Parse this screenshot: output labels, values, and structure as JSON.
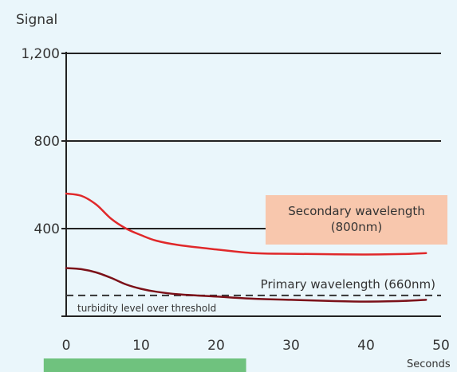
{
  "chart_data": {
    "type": "line",
    "ylabel": "Signal",
    "xlabel": "Seconds",
    "xlim": [
      0,
      50
    ],
    "ylim": [
      0,
      1200
    ],
    "x_ticks": [
      "0",
      "10",
      "20",
      "30",
      "40",
      "50"
    ],
    "y_ticks": [
      "400",
      "800",
      "1,200"
    ],
    "grid": "horizontal",
    "series": [
      {
        "name": "Secondary wavelength (800nm)",
        "color": "#e0282a",
        "x": [
          0,
          2,
          4,
          6,
          8,
          10,
          12,
          15,
          20,
          25,
          30,
          35,
          40,
          45,
          48
        ],
        "y": [
          560,
          550,
          510,
          445,
          400,
          370,
          345,
          325,
          305,
          288,
          285,
          283,
          282,
          284,
          288
        ]
      },
      {
        "name": "Primary wavelength (660nm)",
        "color": "#7b1018",
        "x": [
          0,
          2,
          4,
          6,
          8,
          10,
          12,
          15,
          20,
          25,
          30,
          35,
          40,
          45,
          48
        ],
        "y": [
          220,
          215,
          200,
          175,
          145,
          125,
          112,
          100,
          90,
          80,
          75,
          70,
          67,
          70,
          75
        ]
      }
    ],
    "threshold": {
      "label": "turbidity level over threshold",
      "value": 95
    },
    "annotations": {
      "secondary_label": "Secondary wavelength\n(800nm)",
      "primary_label": "Primary wavelength (660nm)"
    },
    "highlight_range": {
      "x": [
        -3,
        24
      ],
      "color": "#6fc27e"
    },
    "legend_box_color": "#f8c7ad"
  }
}
